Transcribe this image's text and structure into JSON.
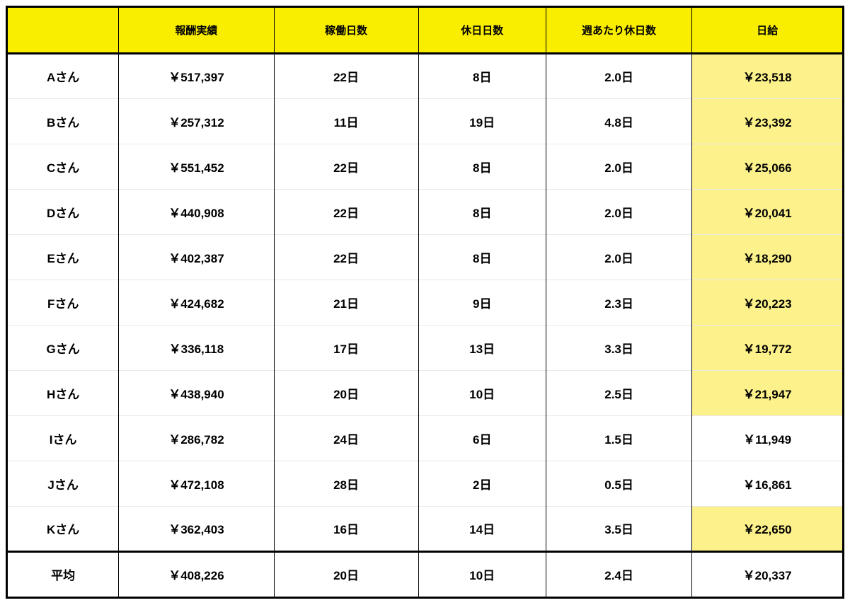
{
  "table": {
    "header_bg": "#faee00",
    "highlight_bg": "#fcf18a",
    "border_color": "#000000",
    "row_divider_color": "#e8e8e8",
    "text_color": "#000000",
    "header_fontsize": 15,
    "cell_fontsize": 17,
    "font_weight": 700,
    "columns": [
      {
        "key": "name",
        "label": "",
        "width_pct": 13.3
      },
      {
        "key": "revenue",
        "label": "報酬実績",
        "width_pct": 18.6
      },
      {
        "key": "work_days",
        "label": "稼働日数",
        "width_pct": 17.3
      },
      {
        "key": "off_days",
        "label": "休日日数",
        "width_pct": 15.3
      },
      {
        "key": "week_off",
        "label": "週あたり休日数",
        "width_pct": 17.5
      },
      {
        "key": "daily_rate",
        "label": "日給",
        "width_pct": 18.0
      }
    ],
    "rows": [
      {
        "name": "Aさん",
        "revenue": "￥517,397",
        "work_days": "22日",
        "off_days": "8日",
        "week_off": "2.0日",
        "daily_rate": "￥23,518",
        "daily_highlight": true
      },
      {
        "name": "Bさん",
        "revenue": "￥257,312",
        "work_days": "11日",
        "off_days": "19日",
        "week_off": "4.8日",
        "daily_rate": "￥23,392",
        "daily_highlight": true
      },
      {
        "name": "Cさん",
        "revenue": "￥551,452",
        "work_days": "22日",
        "off_days": "8日",
        "week_off": "2.0日",
        "daily_rate": "￥25,066",
        "daily_highlight": true
      },
      {
        "name": "Dさん",
        "revenue": "￥440,908",
        "work_days": "22日",
        "off_days": "8日",
        "week_off": "2.0日",
        "daily_rate": "￥20,041",
        "daily_highlight": true
      },
      {
        "name": "Eさん",
        "revenue": "￥402,387",
        "work_days": "22日",
        "off_days": "8日",
        "week_off": "2.0日",
        "daily_rate": "￥18,290",
        "daily_highlight": true
      },
      {
        "name": "Fさん",
        "revenue": "￥424,682",
        "work_days": "21日",
        "off_days": "9日",
        "week_off": "2.3日",
        "daily_rate": "￥20,223",
        "daily_highlight": true
      },
      {
        "name": "Gさん",
        "revenue": "￥336,118",
        "work_days": "17日",
        "off_days": "13日",
        "week_off": "3.3日",
        "daily_rate": "￥19,772",
        "daily_highlight": true
      },
      {
        "name": "Hさん",
        "revenue": "￥438,940",
        "work_days": "20日",
        "off_days": "10日",
        "week_off": "2.5日",
        "daily_rate": "￥21,947",
        "daily_highlight": true
      },
      {
        "name": "Iさん",
        "revenue": "￥286,782",
        "work_days": "24日",
        "off_days": "6日",
        "week_off": "1.5日",
        "daily_rate": "￥11,949",
        "daily_highlight": false
      },
      {
        "name": "Jさん",
        "revenue": "￥472,108",
        "work_days": "28日",
        "off_days": "2日",
        "week_off": "0.5日",
        "daily_rate": "￥16,861",
        "daily_highlight": false
      },
      {
        "name": "Kさん",
        "revenue": "￥362,403",
        "work_days": "16日",
        "off_days": "14日",
        "week_off": "3.5日",
        "daily_rate": "￥22,650",
        "daily_highlight": true
      }
    ],
    "average_row": {
      "name": "平均",
      "revenue": "￥408,226",
      "work_days": "20日",
      "off_days": "10日",
      "week_off": "2.4日",
      "daily_rate": "￥20,337",
      "daily_highlight": false
    }
  }
}
